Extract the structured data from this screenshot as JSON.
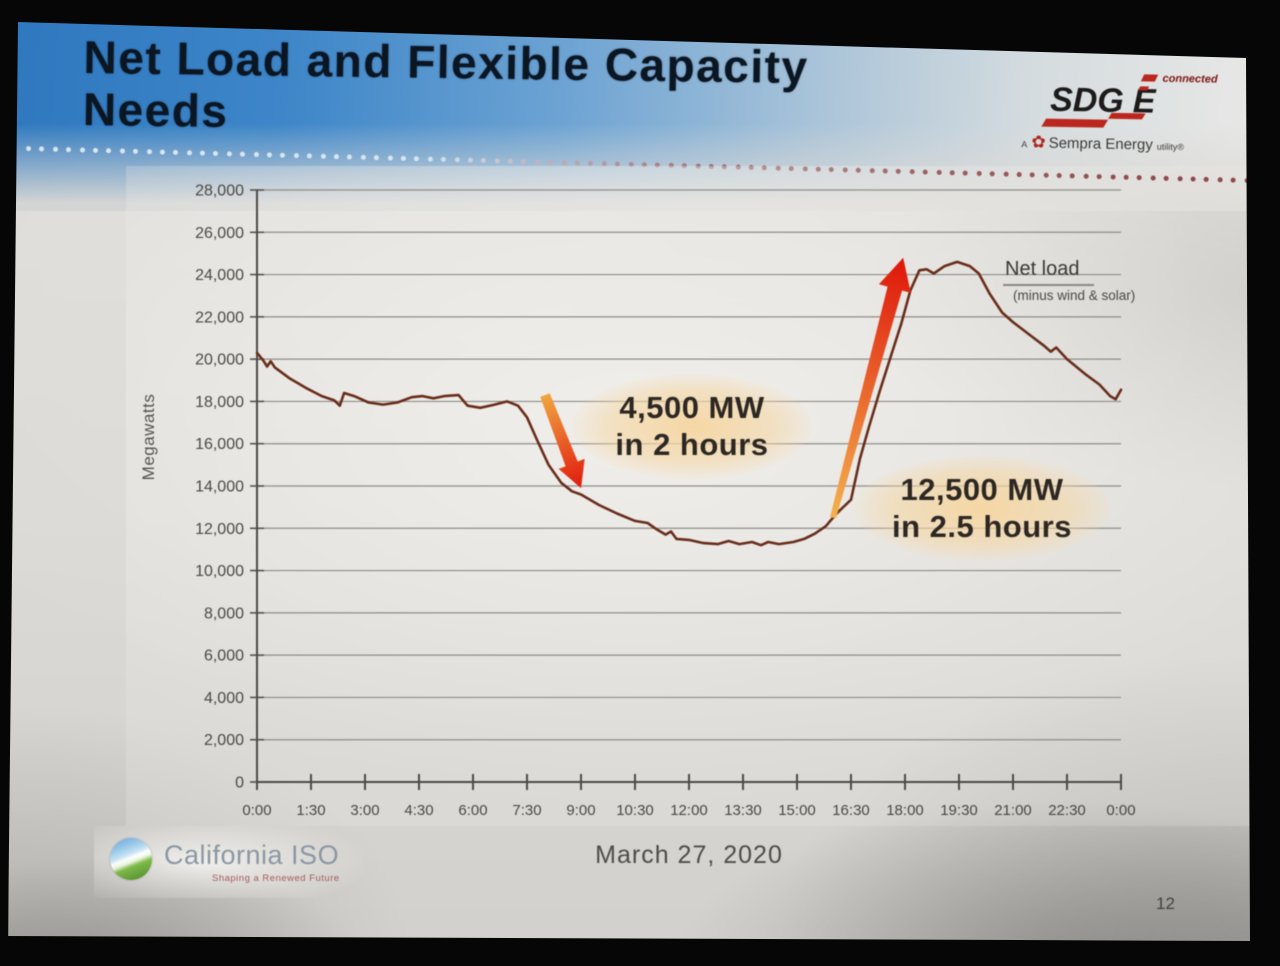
{
  "slide": {
    "title_lines": [
      "Net Load and Flexible Capacity",
      "Needs"
    ],
    "page_number": "12"
  },
  "logos": {
    "sdge": {
      "wordmark_left": "SDG",
      "wordmark_right": "E",
      "connected": "connected",
      "tagline_prefix": "A",
      "tagline_brand": "Sempra Energy",
      "tagline_suffix": "utility®"
    },
    "caiso": {
      "name": "California ISO",
      "tagline": "Shaping a Renewed Future"
    }
  },
  "chart_data": {
    "type": "line",
    "title": "",
    "xlabel": "March 27, 2020",
    "ylabel": "Megawatts",
    "ylim": [
      0,
      28000
    ],
    "y_tick_step": 2000,
    "y_tick_labels": [
      "0",
      "2,000",
      "4,000",
      "6,000",
      "8,000",
      "10,000",
      "12,000",
      "14,000",
      "16,000",
      "18,000",
      "20,000",
      "22,000",
      "24,000",
      "26,000",
      "28,000"
    ],
    "x_tick_hours": [
      0,
      1.5,
      3,
      4.5,
      6,
      7.5,
      9,
      10.5,
      12,
      13.5,
      15,
      16.5,
      18,
      19.5,
      21,
      22.5,
      24
    ],
    "x_tick_labels": [
      "0:00",
      "1:30",
      "3:00",
      "4:30",
      "6:00",
      "7:30",
      "9:00",
      "10:30",
      "12:00",
      "13:30",
      "15:00",
      "16:30",
      "18:00",
      "19:30",
      "21:00",
      "22:30",
      "0:00"
    ],
    "grid": true,
    "series": [
      {
        "name": "Net load (minus wind & solar)",
        "color": "#6b2d19",
        "points": [
          [
            0,
            20300
          ],
          [
            0.17,
            19950
          ],
          [
            0.28,
            19650
          ],
          [
            0.38,
            19900
          ],
          [
            0.5,
            19600
          ],
          [
            0.9,
            19100
          ],
          [
            1.4,
            18600
          ],
          [
            1.8,
            18250
          ],
          [
            2.15,
            18050
          ],
          [
            2.3,
            17800
          ],
          [
            2.42,
            18400
          ],
          [
            2.7,
            18250
          ],
          [
            3.1,
            17950
          ],
          [
            3.5,
            17850
          ],
          [
            3.9,
            17950
          ],
          [
            4.3,
            18200
          ],
          [
            4.6,
            18250
          ],
          [
            4.9,
            18150
          ],
          [
            5.2,
            18250
          ],
          [
            5.6,
            18300
          ],
          [
            5.85,
            17800
          ],
          [
            6.2,
            17700
          ],
          [
            6.6,
            17850
          ],
          [
            6.95,
            18000
          ],
          [
            7.25,
            17800
          ],
          [
            7.5,
            17250
          ],
          [
            7.8,
            16100
          ],
          [
            8.1,
            15000
          ],
          [
            8.45,
            14150
          ],
          [
            8.75,
            13750
          ],
          [
            9.0,
            13600
          ],
          [
            9.5,
            13100
          ],
          [
            10.0,
            12700
          ],
          [
            10.5,
            12350
          ],
          [
            10.85,
            12250
          ],
          [
            11.1,
            11950
          ],
          [
            11.35,
            11700
          ],
          [
            11.5,
            11850
          ],
          [
            11.65,
            11500
          ],
          [
            12.0,
            11450
          ],
          [
            12.4,
            11300
          ],
          [
            12.8,
            11250
          ],
          [
            13.1,
            11400
          ],
          [
            13.4,
            11250
          ],
          [
            13.75,
            11350
          ],
          [
            14.0,
            11200
          ],
          [
            14.2,
            11350
          ],
          [
            14.5,
            11250
          ],
          [
            14.9,
            11350
          ],
          [
            15.2,
            11500
          ],
          [
            15.5,
            11750
          ],
          [
            15.8,
            12100
          ],
          [
            16.1,
            12700
          ],
          [
            16.5,
            13350
          ],
          [
            16.75,
            15300
          ],
          [
            17.0,
            16800
          ],
          [
            17.3,
            18500
          ],
          [
            17.6,
            20100
          ],
          [
            17.9,
            21700
          ],
          [
            18.15,
            23250
          ],
          [
            18.4,
            24200
          ],
          [
            18.6,
            24250
          ],
          [
            18.8,
            24050
          ],
          [
            19.1,
            24400
          ],
          [
            19.45,
            24600
          ],
          [
            19.8,
            24400
          ],
          [
            20.05,
            24050
          ],
          [
            20.35,
            23100
          ],
          [
            20.7,
            22200
          ],
          [
            21.0,
            21750
          ],
          [
            21.5,
            21100
          ],
          [
            21.85,
            20650
          ],
          [
            22.05,
            20350
          ],
          [
            22.2,
            20550
          ],
          [
            22.5,
            20000
          ],
          [
            23.0,
            19300
          ],
          [
            23.4,
            18800
          ],
          [
            23.7,
            18250
          ],
          [
            23.85,
            18100
          ],
          [
            24.0,
            18550
          ]
        ]
      }
    ],
    "series_label": {
      "title": "Net load",
      "subtitle": "(minus wind & solar)"
    },
    "annotations": [
      {
        "lines": [
          "4,500 MW",
          "in 2 hours"
        ]
      },
      {
        "lines": [
          "12,500 MW",
          "in 2.5 hours"
        ]
      }
    ],
    "arrows": [
      {
        "name": "morning-ramp-down-arrow",
        "from_hours": 8.0,
        "from_mw": 18300,
        "to_hours": 9.0,
        "to_mw": 13900,
        "tail_width": 10,
        "shaft_end_width": 13,
        "head_width": 28,
        "head_length": 26,
        "color_start": "#f2a53c",
        "color_end": "#e8170b"
      },
      {
        "name": "evening-ramp-up-arrow",
        "from_hours": 16.0,
        "from_mw": 12500,
        "to_hours": 17.95,
        "to_mw": 24800,
        "tail_width": 6,
        "shaft_end_width": 15,
        "head_width": 33,
        "head_length": 32,
        "color_start": "#f6b24a",
        "color_end": "#e51408"
      }
    ],
    "legend_position": "right-of-peak"
  },
  "colors": {
    "header_blue": "#2c78c2",
    "curve": "#6b2d19",
    "arrow_orange": "#f2a53c",
    "arrow_red": "#e8170b",
    "annotation_glow": "#f7d69e",
    "dot_left": "#d8e6f2",
    "dot_right": "#701212"
  }
}
